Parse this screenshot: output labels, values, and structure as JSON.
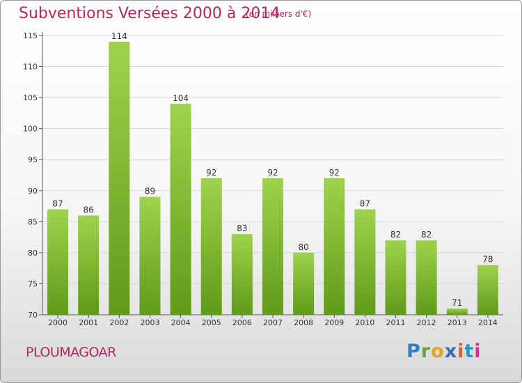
{
  "header": {
    "title": "Subventions Versées 2000 à 2014",
    "subtitle": "(en milliers d'€)"
  },
  "footer": {
    "commune": "PLOUMAGOAR",
    "logo": [
      "P",
      "r",
      "o",
      "x",
      "i",
      "t",
      "i"
    ]
  },
  "chart_data": {
    "type": "bar",
    "title": "Subventions Versées 2000 à 2014",
    "subtitle": "(en milliers d'€)",
    "categories": [
      "2000",
      "2001",
      "2002",
      "2003",
      "2004",
      "2005",
      "2006",
      "2007",
      "2008",
      "2009",
      "2010",
      "2011",
      "2012",
      "2013",
      "2014"
    ],
    "values": [
      87,
      86,
      114,
      89,
      104,
      92,
      83,
      92,
      80,
      92,
      87,
      82,
      82,
      71,
      78
    ],
    "data_labels": [
      "87",
      "86",
      "114",
      "89",
      "104",
      "92",
      "83",
      "92",
      "80",
      "92",
      "87",
      "82",
      "82",
      "71",
      "78"
    ],
    "ylim": [
      70,
      115
    ],
    "yticks": [
      70,
      75,
      80,
      85,
      90,
      95,
      100,
      105,
      110,
      115
    ],
    "ytick_labels": [
      "70",
      "75",
      "80",
      "85",
      "90",
      "95",
      "100",
      "105",
      "110",
      "115"
    ],
    "grid": true,
    "bar_color_top": "#9fd24f",
    "bar_color_bottom": "#5f9b17"
  }
}
